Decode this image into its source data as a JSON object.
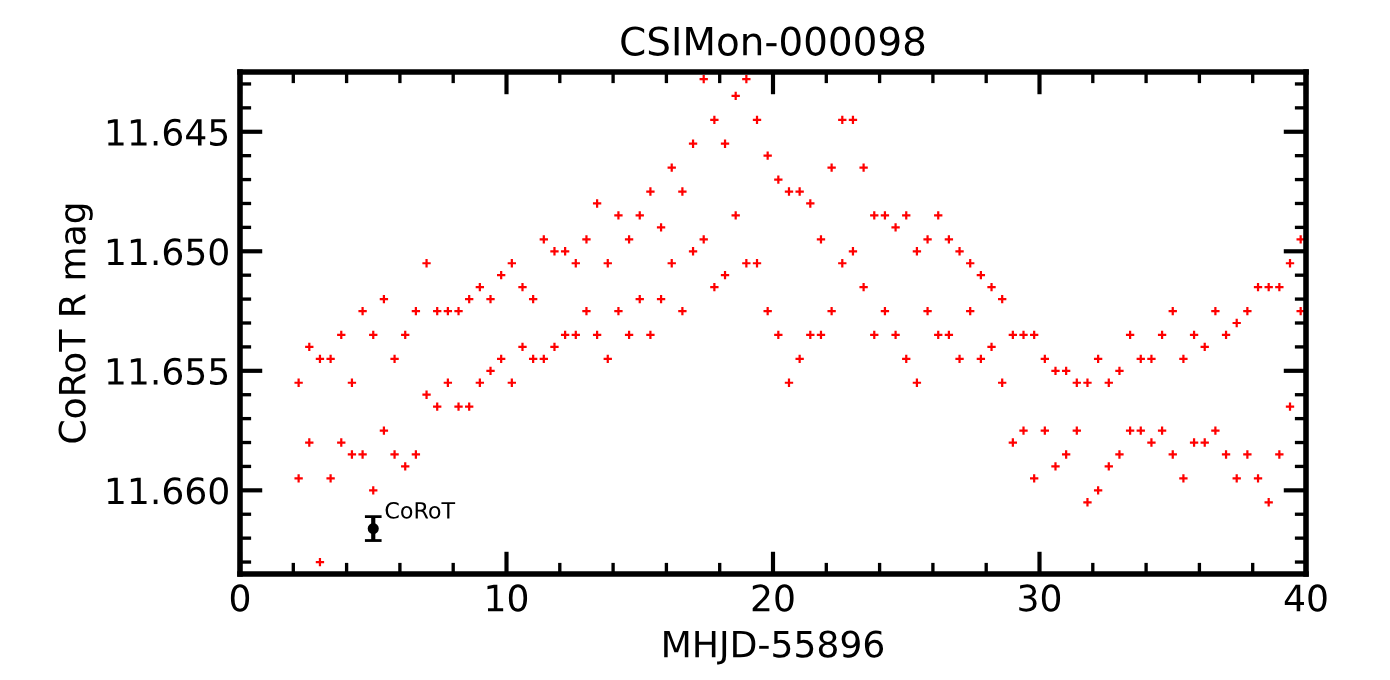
{
  "chart_data": {
    "type": "scatter",
    "title": "CSIMon-000098",
    "xlabel": "MHJD-55896",
    "ylabel": "CoRoT R mag",
    "xlim": [
      0,
      40
    ],
    "xticks": [
      0,
      10,
      20,
      30,
      40
    ],
    "ylim": [
      11.6635,
      11.6425
    ],
    "yticks": [
      {
        "value": 11.645,
        "label": "11.645"
      },
      {
        "value": 11.65,
        "label": "11.650"
      },
      {
        "value": 11.655,
        "label": "11.655"
      },
      {
        "value": 11.66,
        "label": "11.660"
      }
    ],
    "grid": false,
    "legend": false,
    "marker": "cross",
    "series": [
      {
        "color": "#ff0000",
        "x": [
          2.2,
          2.2,
          2.6,
          2.6,
          3.0,
          3.0,
          3.4,
          3.4,
          3.8,
          3.8,
          4.2,
          4.2,
          4.6,
          4.6,
          5.0,
          5.0,
          5.4,
          5.4,
          5.8,
          5.8,
          6.2,
          6.2,
          6.6,
          6.6,
          7.0,
          7.0,
          7.4,
          7.4,
          7.8,
          7.8,
          8.2,
          8.2,
          8.6,
          8.6,
          9.0,
          9.0,
          9.4,
          9.4,
          9.8,
          9.8,
          10.2,
          10.2,
          10.6,
          10.6,
          11.0,
          11.0,
          11.4,
          11.4,
          11.8,
          11.8,
          12.2,
          12.2,
          12.6,
          12.6,
          13.0,
          13.0,
          13.4,
          13.4,
          13.8,
          13.8,
          14.2,
          14.2,
          14.6,
          14.6,
          15.0,
          15.0,
          15.4,
          15.4,
          15.8,
          15.8,
          16.2,
          16.2,
          16.6,
          16.6,
          17.0,
          17.0,
          17.4,
          17.4,
          17.8,
          17.8,
          18.2,
          18.2,
          18.6,
          18.6,
          19.0,
          19.0,
          19.4,
          19.4,
          19.8,
          19.8,
          20.2,
          20.2,
          20.6,
          20.6,
          21.0,
          21.0,
          21.4,
          21.4,
          21.8,
          21.8,
          22.2,
          22.2,
          22.6,
          22.6,
          23.0,
          23.0,
          23.4,
          23.4,
          23.8,
          23.8,
          24.2,
          24.2,
          24.6,
          24.6,
          25.0,
          25.0,
          25.4,
          25.4,
          25.8,
          25.8,
          26.2,
          26.2,
          26.6,
          26.6,
          27.0,
          27.0,
          27.4,
          27.4,
          27.8,
          27.8,
          28.2,
          28.2,
          28.6,
          28.6,
          29.0,
          29.0,
          29.4,
          29.4,
          29.8,
          29.8,
          30.2,
          30.2,
          30.6,
          30.6,
          31.0,
          31.0,
          31.4,
          31.4,
          31.8,
          31.8,
          32.2,
          32.2,
          32.6,
          32.6,
          33.0,
          33.0,
          33.4,
          33.4,
          33.8,
          33.8,
          34.2,
          34.2,
          34.6,
          34.6,
          35.0,
          35.0,
          35.4,
          35.4,
          35.8,
          35.8,
          36.2,
          36.2,
          36.6,
          36.6,
          37.0,
          37.0,
          37.4,
          37.4,
          37.8,
          37.8,
          38.2,
          38.2,
          38.6,
          38.6,
          39.0,
          39.0,
          39.4,
          39.4,
          39.8,
          39.8
        ],
        "values": [
          11.6555,
          11.6595,
          11.654,
          11.658,
          11.6545,
          11.663,
          11.6545,
          11.6595,
          11.6535,
          11.658,
          11.6555,
          11.6585,
          11.6525,
          11.6585,
          11.6535,
          11.66,
          11.652,
          11.6575,
          11.6545,
          11.6585,
          11.6535,
          11.659,
          11.6525,
          11.6585,
          11.6505,
          11.656,
          11.6525,
          11.6565,
          11.6525,
          11.6555,
          11.6525,
          11.6565,
          11.652,
          11.6565,
          11.6515,
          11.6555,
          11.652,
          11.655,
          11.651,
          11.6545,
          11.6505,
          11.6555,
          11.6515,
          11.654,
          11.652,
          11.6545,
          11.6495,
          11.6545,
          11.65,
          11.654,
          11.65,
          11.6535,
          11.6505,
          11.6535,
          11.6495,
          11.6525,
          11.648,
          11.6535,
          11.6505,
          11.6545,
          11.6485,
          11.6525,
          11.6495,
          11.6535,
          11.6485,
          11.652,
          11.6475,
          11.6535,
          11.649,
          11.652,
          11.6465,
          11.6505,
          11.6475,
          11.6525,
          11.6455,
          11.65,
          11.6428,
          11.6495,
          11.6445,
          11.6515,
          11.6455,
          11.651,
          11.6435,
          11.6485,
          11.6428,
          11.6505,
          11.6445,
          11.6505,
          11.646,
          11.6525,
          11.647,
          11.6535,
          11.6475,
          11.6555,
          11.6475,
          11.6545,
          11.648,
          11.6535,
          11.6495,
          11.6535,
          11.6465,
          11.6525,
          11.6445,
          11.6505,
          11.6445,
          11.65,
          11.6465,
          11.6515,
          11.6485,
          11.6535,
          11.6485,
          11.6525,
          11.649,
          11.6535,
          11.6485,
          11.6545,
          11.65,
          11.6555,
          11.6495,
          11.6525,
          11.6485,
          11.6535,
          11.6495,
          11.6535,
          11.65,
          11.6545,
          11.6505,
          11.6525,
          11.651,
          11.6545,
          11.6515,
          11.654,
          11.652,
          11.6555,
          11.6535,
          11.658,
          11.6535,
          11.6575,
          11.6535,
          11.6595,
          11.6545,
          11.6575,
          11.655,
          11.659,
          11.655,
          11.6585,
          11.6555,
          11.6575,
          11.6555,
          11.6605,
          11.6545,
          11.66,
          11.6555,
          11.659,
          11.655,
          11.6585,
          11.6535,
          11.6575,
          11.6545,
          11.6575,
          11.6545,
          11.658,
          11.6535,
          11.6575,
          11.6525,
          11.6585,
          11.6545,
          11.6595,
          11.6535,
          11.658,
          11.654,
          11.658,
          11.6525,
          11.6575,
          11.6535,
          11.6585,
          11.653,
          11.6595,
          11.6525,
          11.6585,
          11.6515,
          11.6595,
          11.6515,
          11.6605,
          11.6515,
          11.6585,
          11.6505,
          11.6565,
          11.6495,
          11.6525
        ]
      },
      {
        "name": "CoRoT",
        "color": "#000000",
        "marker": "circle",
        "x": [
          5.0
        ],
        "values": [
          11.6616
        ],
        "errors": [
          0.0005
        ]
      }
    ]
  }
}
